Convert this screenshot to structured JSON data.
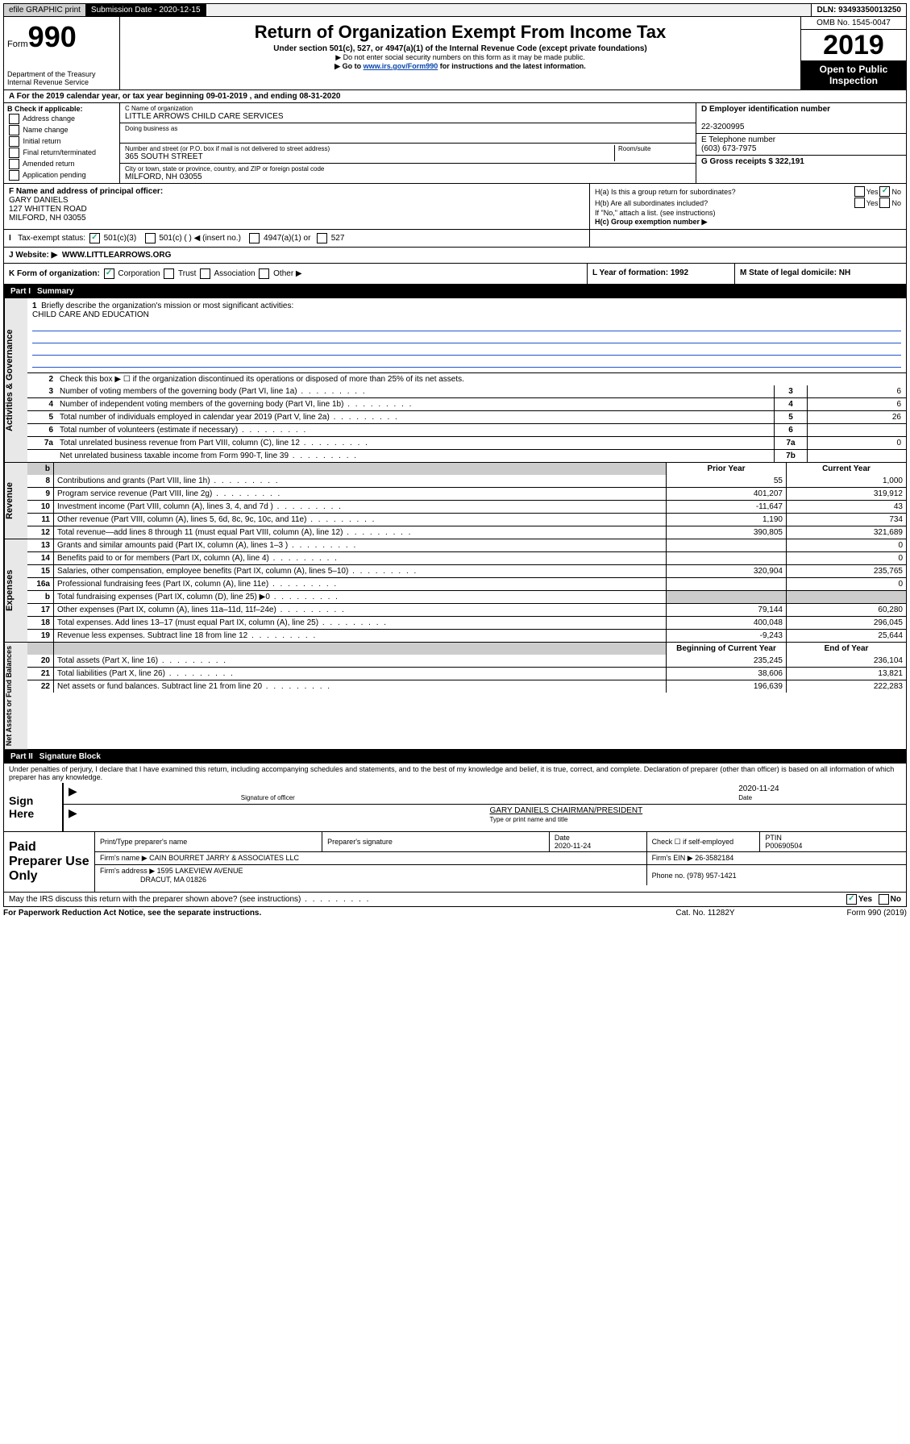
{
  "topbar": {
    "efile": "efile GRAPHIC print",
    "sub_date_label": "Submission Date - 2020-12-15",
    "dln": "DLN: 93493350013250"
  },
  "header": {
    "form_label": "Form",
    "form_num": "990",
    "dept": "Department of the Treasury\nInternal Revenue Service",
    "title": "Return of Organization Exempt From Income Tax",
    "subtitle": "Under section 501(c), 527, or 4947(a)(1) of the Internal Revenue Code (except private foundations)",
    "note1": "▶ Do not enter social security numbers on this form as it may be made public.",
    "note2_pre": "▶ Go to ",
    "note2_link": "www.irs.gov/Form990",
    "note2_post": " for instructions and the latest information.",
    "omb": "OMB No. 1545-0047",
    "year": "2019",
    "open": "Open to Public Inspection"
  },
  "period": "For the 2019 calendar year, or tax year beginning 09-01-2019   , and ending 08-31-2020",
  "section_b": {
    "label": "B Check if applicable:",
    "opts": [
      "Address change",
      "Name change",
      "Initial return",
      "Final return/terminated",
      "Amended return",
      "Application pending"
    ]
  },
  "section_c": {
    "name_label": "C Name of organization",
    "name": "LITTLE ARROWS CHILD CARE SERVICES",
    "dba_label": "Doing business as",
    "addr_label": "Number and street (or P.O. box if mail is not delivered to street address)",
    "addr": "365 SOUTH STREET",
    "room_label": "Room/suite",
    "city_label": "City or town, state or province, country, and ZIP or foreign postal code",
    "city": "MILFORD, NH  03055"
  },
  "section_d": {
    "label": "D Employer identification number",
    "val": "22-3200995"
  },
  "section_e": {
    "label": "E Telephone number",
    "val": "(603) 673-7975"
  },
  "section_g": {
    "label": "G Gross receipts $ 322,191"
  },
  "section_f": {
    "label": "F  Name and address of principal officer:",
    "name": "GARY DANIELS",
    "addr1": "127 WHITTEN ROAD",
    "addr2": "MILFORD, NH  03055"
  },
  "section_h": {
    "ha": "H(a)  Is this a group return for subordinates?",
    "hb": "H(b)  Are all subordinates included?",
    "hb_note": "If \"No,\" attach a list. (see instructions)",
    "hc": "H(c)  Group exemption number ▶"
  },
  "section_i": {
    "label": "Tax-exempt status:",
    "opt1": "501(c)(3)",
    "opt2": "501(c) (  ) ◀ (insert no.)",
    "opt3": "4947(a)(1) or",
    "opt4": "527"
  },
  "section_j": {
    "label": "J   Website: ▶",
    "val": "WWW.LITTLEARROWS.ORG"
  },
  "section_k": {
    "label": "K Form of organization:",
    "opts": [
      "Corporation",
      "Trust",
      "Association",
      "Other ▶"
    ],
    "l": "L Year of formation: 1992",
    "m": "M State of legal domicile: NH"
  },
  "part1": {
    "label": "Part I",
    "title": "Summary"
  },
  "governance": {
    "tab": "Activities & Governance",
    "q1": "Briefly describe the organization's mission or most significant activities:",
    "mission": "CHILD CARE AND EDUCATION",
    "q2": "Check this box ▶ ☐  if the organization discontinued its operations or disposed of more than 25% of its net assets.",
    "rows": [
      {
        "n": "3",
        "t": "Number of voting members of the governing body (Part VI, line 1a)",
        "a": "3",
        "v": "6"
      },
      {
        "n": "4",
        "t": "Number of independent voting members of the governing body (Part VI, line 1b)",
        "a": "4",
        "v": "6"
      },
      {
        "n": "5",
        "t": "Total number of individuals employed in calendar year 2019 (Part V, line 2a)",
        "a": "5",
        "v": "26"
      },
      {
        "n": "6",
        "t": "Total number of volunteers (estimate if necessary)",
        "a": "6",
        "v": ""
      },
      {
        "n": "7a",
        "t": "Total unrelated business revenue from Part VIII, column (C), line 12",
        "a": "7a",
        "v": "0"
      },
      {
        "n": "",
        "t": "Net unrelated business taxable income from Form 990-T, line 39",
        "a": "7b",
        "v": ""
      }
    ]
  },
  "revenue": {
    "tab": "Revenue",
    "hdr_prior": "Prior Year",
    "hdr_curr": "Current Year",
    "rows": [
      {
        "n": "8",
        "t": "Contributions and grants (Part VIII, line 1h)",
        "p": "55",
        "c": "1,000"
      },
      {
        "n": "9",
        "t": "Program service revenue (Part VIII, line 2g)",
        "p": "401,207",
        "c": "319,912"
      },
      {
        "n": "10",
        "t": "Investment income (Part VIII, column (A), lines 3, 4, and 7d )",
        "p": "-11,647",
        "c": "43"
      },
      {
        "n": "11",
        "t": "Other revenue (Part VIII, column (A), lines 5, 6d, 8c, 9c, 10c, and 11e)",
        "p": "1,190",
        "c": "734"
      },
      {
        "n": "12",
        "t": "Total revenue—add lines 8 through 11 (must equal Part VIII, column (A), line 12)",
        "p": "390,805",
        "c": "321,689"
      }
    ]
  },
  "expenses": {
    "tab": "Expenses",
    "rows": [
      {
        "n": "13",
        "t": "Grants and similar amounts paid (Part IX, column (A), lines 1–3 )",
        "p": "",
        "c": "0"
      },
      {
        "n": "14",
        "t": "Benefits paid to or for members (Part IX, column (A), line 4)",
        "p": "",
        "c": "0"
      },
      {
        "n": "15",
        "t": "Salaries, other compensation, employee benefits (Part IX, column (A), lines 5–10)",
        "p": "320,904",
        "c": "235,765"
      },
      {
        "n": "16a",
        "t": "Professional fundraising fees (Part IX, column (A), line 11e)",
        "p": "",
        "c": "0"
      },
      {
        "n": "b",
        "t": "Total fundraising expenses (Part IX, column (D), line 25) ▶0",
        "p": "GREY",
        "c": "GREY"
      },
      {
        "n": "17",
        "t": "Other expenses (Part IX, column (A), lines 11a–11d, 11f–24e)",
        "p": "79,144",
        "c": "60,280"
      },
      {
        "n": "18",
        "t": "Total expenses. Add lines 13–17 (must equal Part IX, column (A), line 25)",
        "p": "400,048",
        "c": "296,045"
      },
      {
        "n": "19",
        "t": "Revenue less expenses. Subtract line 18 from line 12",
        "p": "-9,243",
        "c": "25,644"
      }
    ]
  },
  "netassets": {
    "tab": "Net Assets or Fund Balances",
    "hdr_prior": "Beginning of Current Year",
    "hdr_curr": "End of Year",
    "rows": [
      {
        "n": "20",
        "t": "Total assets (Part X, line 16)",
        "p": "235,245",
        "c": "236,104"
      },
      {
        "n": "21",
        "t": "Total liabilities (Part X, line 26)",
        "p": "38,606",
        "c": "13,821"
      },
      {
        "n": "22",
        "t": "Net assets or fund balances. Subtract line 21 from line 20",
        "p": "196,639",
        "c": "222,283"
      }
    ]
  },
  "part2": {
    "label": "Part II",
    "title": "Signature Block"
  },
  "sig": {
    "intro": "Under penalties of perjury, I declare that I have examined this return, including accompanying schedules and statements, and to the best of my knowledge and belief, it is true, correct, and complete. Declaration of preparer (other than officer) is based on all information of which preparer has any knowledge.",
    "sign_here": "Sign Here",
    "sig_officer": "Signature of officer",
    "date_val": "2020-11-24",
    "date_lbl": "Date",
    "name": "GARY DANIELS  CHAIRMAN/PRESIDENT",
    "name_lbl": "Type or print name and title"
  },
  "prep": {
    "label": "Paid Preparer Use Only",
    "h1": "Print/Type preparer's name",
    "h2": "Preparer's signature",
    "h3": "Date",
    "h3v": "2020-11-24",
    "h4": "Check ☐ if self-employed",
    "h5": "PTIN",
    "h5v": "P00690504",
    "firm_name_lbl": "Firm's name    ▶",
    "firm_name": "CAIN BOURRET JARRY & ASSOCIATES LLC",
    "firm_ein_lbl": "Firm's EIN ▶",
    "firm_ein": "26-3582184",
    "firm_addr_lbl": "Firm's address ▶",
    "firm_addr": "1595 LAKEVIEW AVENUE",
    "firm_city": "DRACUT, MA  01826",
    "phone_lbl": "Phone no.",
    "phone": "(978) 957-1421"
  },
  "bottom": {
    "q": "May the IRS discuss this return with the preparer shown above? (see instructions)",
    "yes": "Yes",
    "no": "No"
  },
  "footer": {
    "l": "For Paperwork Reduction Act Notice, see the separate instructions.",
    "m": "Cat. No. 11282Y",
    "r": "Form 990 (2019)"
  }
}
